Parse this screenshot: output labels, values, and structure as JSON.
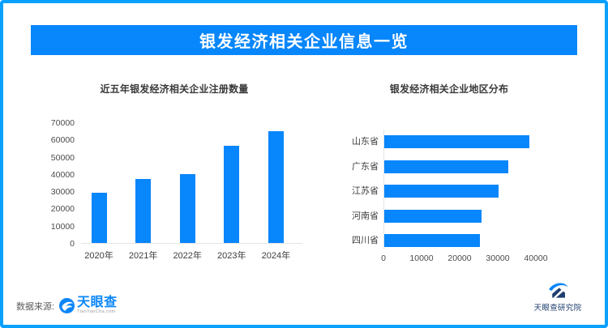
{
  "page": {
    "title": "银发经济相关企业信息一览",
    "source_label": "数据来源:",
    "brand": {
      "name": "天眼查",
      "domain": "TianYanCha.com",
      "institute": "天眼查研究院"
    },
    "colors": {
      "accent": "#0886fb",
      "border": "#0aa0fe",
      "brand_blue": "#0b86f8",
      "navy": "#1d3e6e"
    }
  },
  "chart_data": [
    {
      "type": "bar",
      "orientation": "vertical",
      "title": "近五年银发经济相关企业注册数量",
      "categories": [
        "2020年",
        "2021年",
        "2022年",
        "2023年",
        "2024年"
      ],
      "values": [
        29000,
        37000,
        40000,
        56500,
        65000
      ],
      "xlabel": "",
      "ylabel": "",
      "ylim": [
        0,
        70000
      ],
      "yticks": [
        0,
        10000,
        20000,
        30000,
        40000,
        50000,
        60000,
        70000
      ],
      "grid": false,
      "legend": false,
      "bar_color": "#0886fb"
    },
    {
      "type": "bar",
      "orientation": "horizontal",
      "title": "银发经济相关企业地区分布",
      "categories": [
        "山东省",
        "广东省",
        "江苏省",
        "河南省",
        "四川省"
      ],
      "values": [
        38000,
        32500,
        30000,
        25500,
        25000
      ],
      "xlabel": "",
      "ylabel": "",
      "xlim": [
        0,
        40000
      ],
      "xticks": [
        0,
        10000,
        20000,
        30000,
        40000
      ],
      "grid": false,
      "legend": false,
      "bar_color": "#0886fb"
    }
  ]
}
